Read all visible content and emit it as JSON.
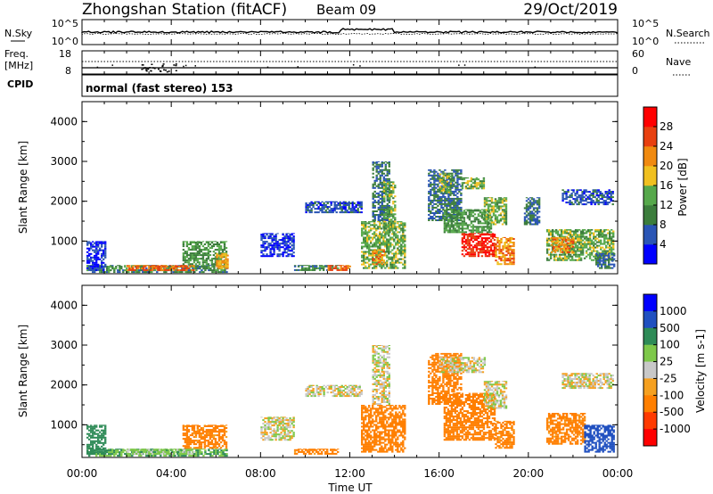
{
  "header": {
    "station": "Zhongshan Station (fitACF)",
    "beam": "Beam 09",
    "date": "29/Oct/2019"
  },
  "top_panel": {
    "left_label": "N.Sky",
    "right_label": "N.Search",
    "left_ticks": [
      "10^5",
      "10^0"
    ],
    "right_ticks": [
      "10^5",
      "10^0"
    ]
  },
  "freq_panel": {
    "left_label_top": "Freq.",
    "left_label_unit": "[MHz]",
    "left_ticks": [
      "18",
      "8"
    ],
    "right_label": "Nave",
    "right_ticks": [
      "60",
      "0"
    ],
    "cpid_label": "CPID"
  },
  "cpid_panel": {
    "text": "normal (fast stereo) 153"
  },
  "colors": {
    "power": [
      "#0000ff",
      "#2a55b5",
      "#3c7d3c",
      "#56a84b",
      "#f0c020",
      "#f08a10",
      "#e84010",
      "#ff0000"
    ],
    "velocity": [
      "#ff0000",
      "#ff3a00",
      "#ff7f00",
      "#f5a020",
      "#c8c8c8",
      "#7ec84a",
      "#2e8b57",
      "#2050c0",
      "#0000ff"
    ]
  },
  "chart_data": [
    {
      "type": "heatmap",
      "name": "power",
      "ylabel": "Slant Range [km]",
      "xlabel": "",
      "ylim": [
        180,
        4500
      ],
      "yticks": [
        "1000",
        "2000",
        "3000",
        "4000"
      ],
      "xticks": [],
      "colorbar": {
        "label": "Power [dB]",
        "ticks": [
          "4",
          "8",
          "12",
          "16",
          "20",
          "24",
          "28"
        ],
        "range": [
          0,
          32
        ]
      },
      "regions": [
        {
          "t": [
            0.2,
            6.5
          ],
          "r": [
            200,
            400
          ],
          "v": 10
        },
        {
          "t": [
            2.0,
            5.0
          ],
          "r": [
            250,
            400
          ],
          "v": 24
        },
        {
          "t": [
            0.2,
            1.0
          ],
          "r": [
            250,
            1000
          ],
          "v": 4
        },
        {
          "t": [
            4.5,
            6.5
          ],
          "r": [
            400,
            1000
          ],
          "v": 12
        },
        {
          "t": [
            6.0,
            6.5
          ],
          "r": [
            300,
            700
          ],
          "v": 20
        },
        {
          "t": [
            8.0,
            9.5
          ],
          "r": [
            600,
            1200
          ],
          "v": 4
        },
        {
          "t": [
            10.0,
            12.5
          ],
          "r": [
            1700,
            2000
          ],
          "v": 6
        },
        {
          "t": [
            9.5,
            11.5
          ],
          "r": [
            250,
            400
          ],
          "v": 10
        },
        {
          "t": [
            11.0,
            12.0
          ],
          "r": [
            250,
            400
          ],
          "v": 24
        },
        {
          "t": [
            12.5,
            14.5
          ],
          "r": [
            300,
            1500
          ],
          "v": 14
        },
        {
          "t": [
            13.0,
            13.5
          ],
          "r": [
            400,
            800
          ],
          "v": 22
        },
        {
          "t": [
            13.0,
            13.8
          ],
          "r": [
            1500,
            3000
          ],
          "v": 8
        },
        {
          "t": [
            13.5,
            14.0
          ],
          "r": [
            1200,
            2500
          ],
          "v": 14
        },
        {
          "t": [
            15.5,
            17.0
          ],
          "r": [
            1500,
            2800
          ],
          "v": 8
        },
        {
          "t": [
            16.0,
            16.5
          ],
          "r": [
            2200,
            2700
          ],
          "v": 14
        },
        {
          "t": [
            17.0,
            18.0
          ],
          "r": [
            2300,
            2600
          ],
          "v": 14
        },
        {
          "t": [
            16.2,
            18.3
          ],
          "r": [
            1200,
            1800
          ],
          "v": 12
        },
        {
          "t": [
            17.0,
            18.5
          ],
          "r": [
            600,
            1200
          ],
          "v": 28
        },
        {
          "t": [
            18.5,
            19.3
          ],
          "r": [
            400,
            1100
          ],
          "v": 22
        },
        {
          "t": [
            18.0,
            19.0
          ],
          "r": [
            1400,
            2100
          ],
          "v": 14
        },
        {
          "t": [
            19.8,
            20.5
          ],
          "r": [
            1400,
            2100
          ],
          "v": 8
        },
        {
          "t": [
            20.8,
            23.8
          ],
          "r": [
            500,
            1300
          ],
          "v": 14
        },
        {
          "t": [
            21.0,
            22.0
          ],
          "r": [
            700,
            1100
          ],
          "v": 22
        },
        {
          "t": [
            21.5,
            23.8
          ],
          "r": [
            1900,
            2300
          ],
          "v": 6
        },
        {
          "t": [
            23.0,
            23.8
          ],
          "r": [
            300,
            700
          ],
          "v": 8
        }
      ]
    },
    {
      "type": "heatmap",
      "name": "velocity",
      "ylabel": "Slant Range [km]",
      "xlabel": "Time UT",
      "ylim": [
        180,
        4500
      ],
      "yticks": [
        "1000",
        "2000",
        "3000",
        "4000"
      ],
      "xticks": [
        "00:00",
        "04:00",
        "08:00",
        "12:00",
        "16:00",
        "20:00",
        "00:00"
      ],
      "colorbar": {
        "label": "Velocity [m s-1]",
        "ticks": [
          "1000",
          "500",
          "100",
          "25",
          "-25",
          "-100",
          "-500",
          "-1000"
        ]
      },
      "regions": [
        {
          "t": [
            0.2,
            6.5
          ],
          "r": [
            200,
            400
          ],
          "v": 100
        },
        {
          "t": [
            2.0,
            5.0
          ],
          "r": [
            250,
            400
          ],
          "v": 50
        },
        {
          "t": [
            0.2,
            1.0
          ],
          "r": [
            250,
            1000
          ],
          "v": 300
        },
        {
          "t": [
            4.5,
            6.5
          ],
          "r": [
            400,
            1000
          ],
          "v": -150
        },
        {
          "t": [
            8.0,
            9.5
          ],
          "r": [
            600,
            1200
          ],
          "v": 0
        },
        {
          "t": [
            10.0,
            12.5
          ],
          "r": [
            1700,
            2000
          ],
          "v": 0
        },
        {
          "t": [
            9.5,
            11.5
          ],
          "r": [
            250,
            400
          ],
          "v": -150
        },
        {
          "t": [
            12.5,
            14.5
          ],
          "r": [
            300,
            1500
          ],
          "v": -200
        },
        {
          "t": [
            13.0,
            13.8
          ],
          "r": [
            1500,
            3000
          ],
          "v": 0
        },
        {
          "t": [
            15.5,
            17.0
          ],
          "r": [
            1500,
            2800
          ],
          "v": -200
        },
        {
          "t": [
            16.0,
            18.0
          ],
          "r": [
            2300,
            2700
          ],
          "v": 0
        },
        {
          "t": [
            16.2,
            18.5
          ],
          "r": [
            600,
            1800
          ],
          "v": -200
        },
        {
          "t": [
            18.5,
            19.3
          ],
          "r": [
            400,
            1100
          ],
          "v": -150
        },
        {
          "t": [
            18.0,
            19.0
          ],
          "r": [
            1400,
            2100
          ],
          "v": 0
        },
        {
          "t": [
            20.8,
            22.5
          ],
          "r": [
            500,
            1300
          ],
          "v": -150
        },
        {
          "t": [
            22.5,
            23.8
          ],
          "r": [
            300,
            1000
          ],
          "v": 700
        },
        {
          "t": [
            21.5,
            23.8
          ],
          "r": [
            1900,
            2300
          ],
          "v": 0
        }
      ]
    }
  ]
}
